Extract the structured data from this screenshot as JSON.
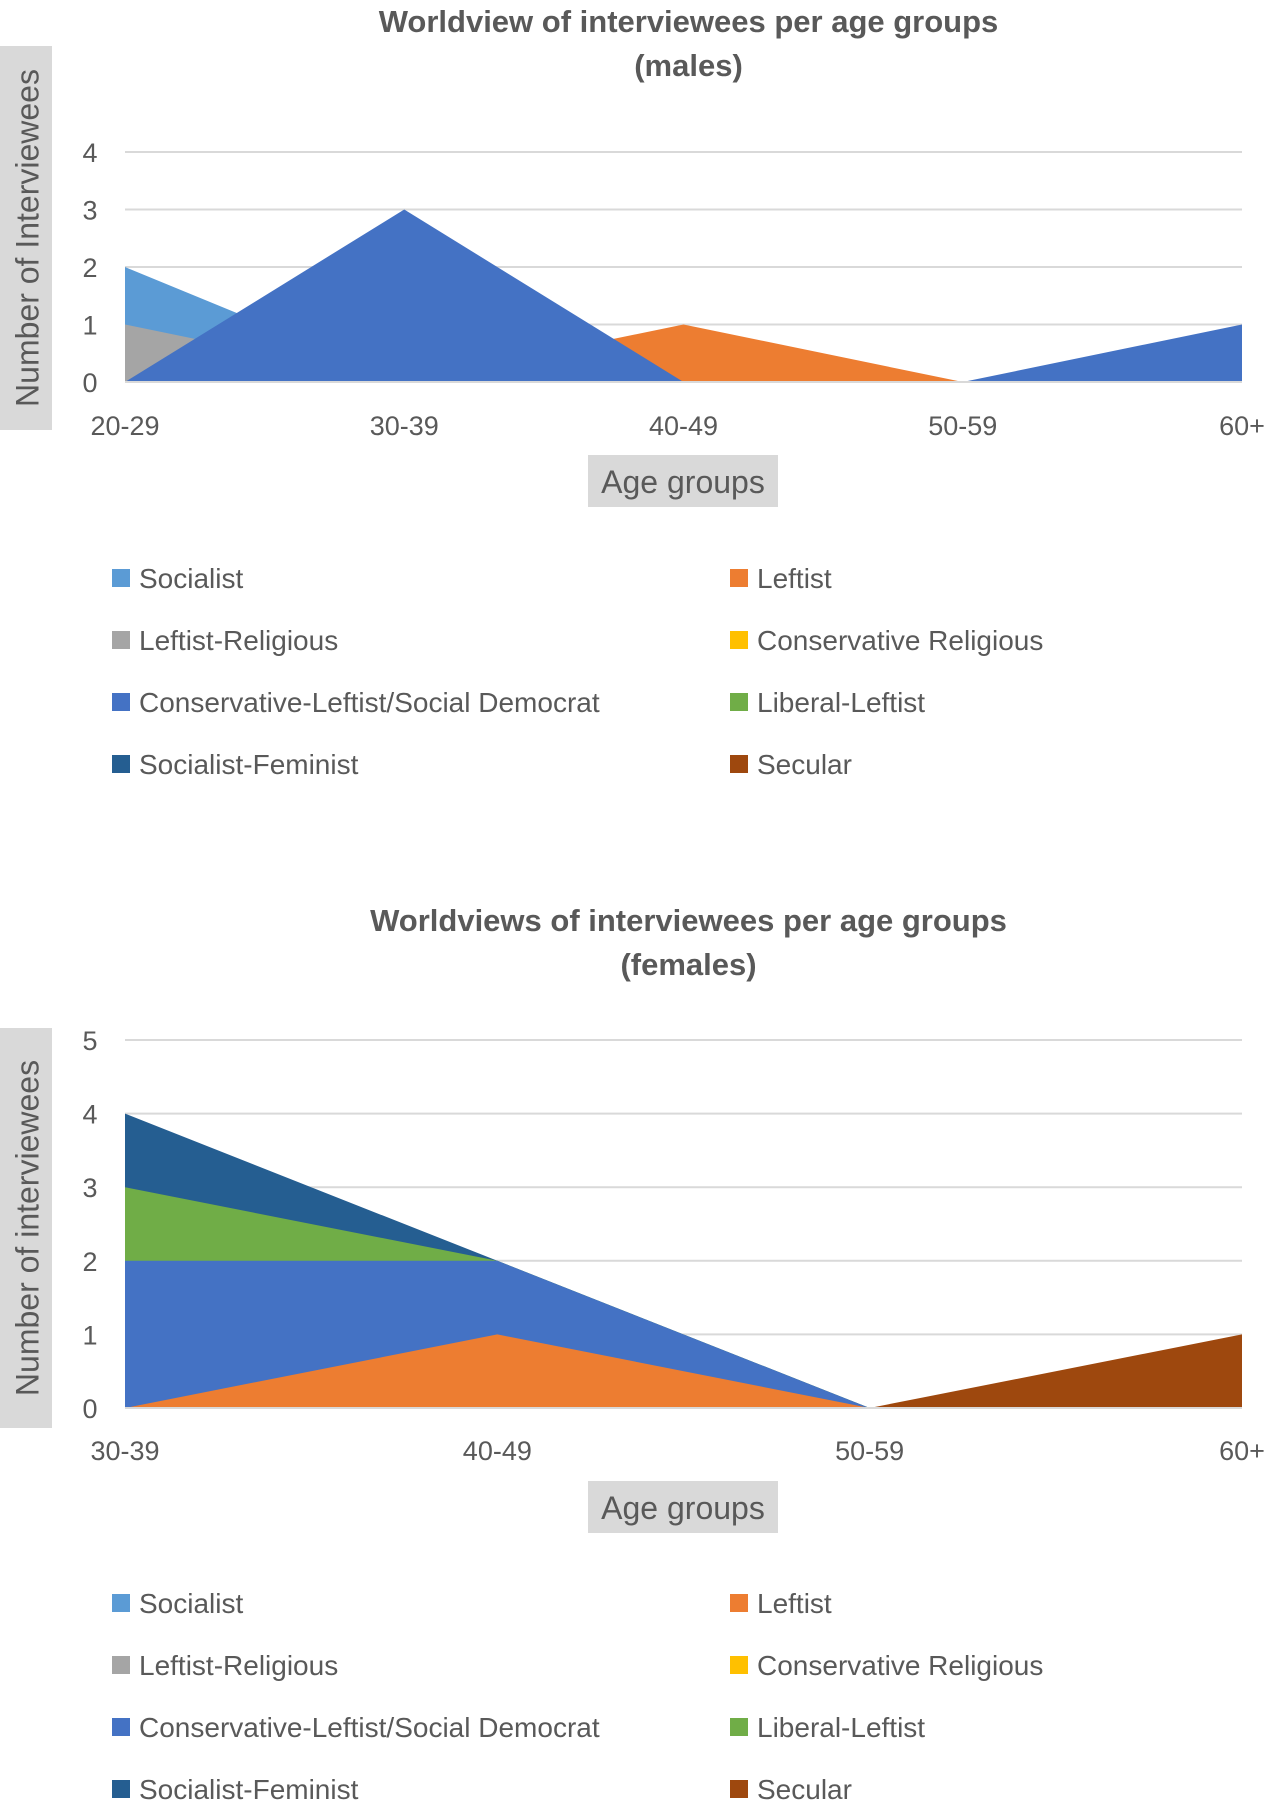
{
  "colors": {
    "Socialist": "#5B9BD5",
    "Leftist": "#ED7D31",
    "Leftist-Religious": "#A5A5A5",
    "Conservative Religious": "#FFC000",
    "Conservative-Leftist/Social Democrat": "#4472C4",
    "Liberal-Leftist": "#70AD47",
    "Socialist-Feminist": "#255E91",
    "Secular": "#9E480E",
    "grid": "#D9D9D9",
    "axis_text": "#595959",
    "title_text": "#595959",
    "label_bg": "#D9D9D9"
  },
  "chart_data": [
    {
      "id": "males",
      "type": "area",
      "title": "Worldview of interviewees per age groups",
      "subtitle": "(males)",
      "xlabel": "Age groups",
      "ylabel": "Number of Interviewees",
      "categories": [
        "20-29",
        "30-39",
        "40-49",
        "50-59",
        "60+"
      ],
      "ylim": [
        0,
        4
      ],
      "yticks": [
        0,
        1,
        2,
        3,
        4
      ],
      "grid": true,
      "legend_position": "bottom",
      "series": [
        {
          "name": "Socialist",
          "values": [
            2,
            0,
            0,
            0,
            0
          ]
        },
        {
          "name": "Leftist",
          "values": [
            0,
            0,
            1,
            0,
            0
          ]
        },
        {
          "name": "Leftist-Religious",
          "values": [
            1,
            0,
            0,
            0,
            0
          ]
        },
        {
          "name": "Conservative Religious",
          "values": [
            0,
            0,
            0,
            0,
            0
          ]
        },
        {
          "name": "Conservative-Leftist/Social Democrat",
          "values": [
            0,
            3,
            0,
            0,
            1
          ]
        },
        {
          "name": "Liberal-Leftist",
          "values": [
            0,
            0,
            0,
            0,
            0
          ]
        },
        {
          "name": "Socialist-Feminist",
          "values": [
            0,
            0,
            0,
            0,
            0
          ]
        },
        {
          "name": "Secular",
          "values": [
            0,
            0,
            0,
            0,
            0
          ]
        }
      ]
    },
    {
      "id": "females",
      "type": "area",
      "title": "Worldviews of interviewees per age groups",
      "subtitle": "(females)",
      "xlabel": "Age groups",
      "ylabel": "Number of interviewees",
      "categories": [
        "30-39",
        "40-49",
        "50-59",
        "60+"
      ],
      "ylim": [
        0,
        5
      ],
      "yticks": [
        0,
        1,
        2,
        3,
        4,
        5
      ],
      "grid": true,
      "legend_position": "bottom",
      "series": [
        {
          "name": "Socialist-Feminist",
          "values": [
            4,
            2,
            0,
            0
          ]
        },
        {
          "name": "Liberal-Leftist",
          "values": [
            3,
            2,
            0,
            0
          ]
        },
        {
          "name": "Conservative-Leftist/Social Democrat",
          "values": [
            2,
            2,
            0,
            0
          ]
        },
        {
          "name": "Leftist",
          "values": [
            0,
            1,
            0,
            0
          ]
        },
        {
          "name": "Secular",
          "values": [
            0,
            0,
            0,
            1
          ]
        },
        {
          "name": "Socialist",
          "values": [
            0,
            0,
            0,
            0
          ]
        },
        {
          "name": "Leftist-Religious",
          "values": [
            0,
            0,
            0,
            0
          ]
        },
        {
          "name": "Conservative Religious",
          "values": [
            0,
            0,
            0,
            0
          ]
        }
      ]
    }
  ],
  "legend": [
    "Socialist",
    "Leftist",
    "Leftist-Religious",
    "Conservative Religious",
    "Conservative-Leftist/Social Democrat",
    "Liberal-Leftist",
    "Socialist-Feminist",
    "Secular"
  ]
}
